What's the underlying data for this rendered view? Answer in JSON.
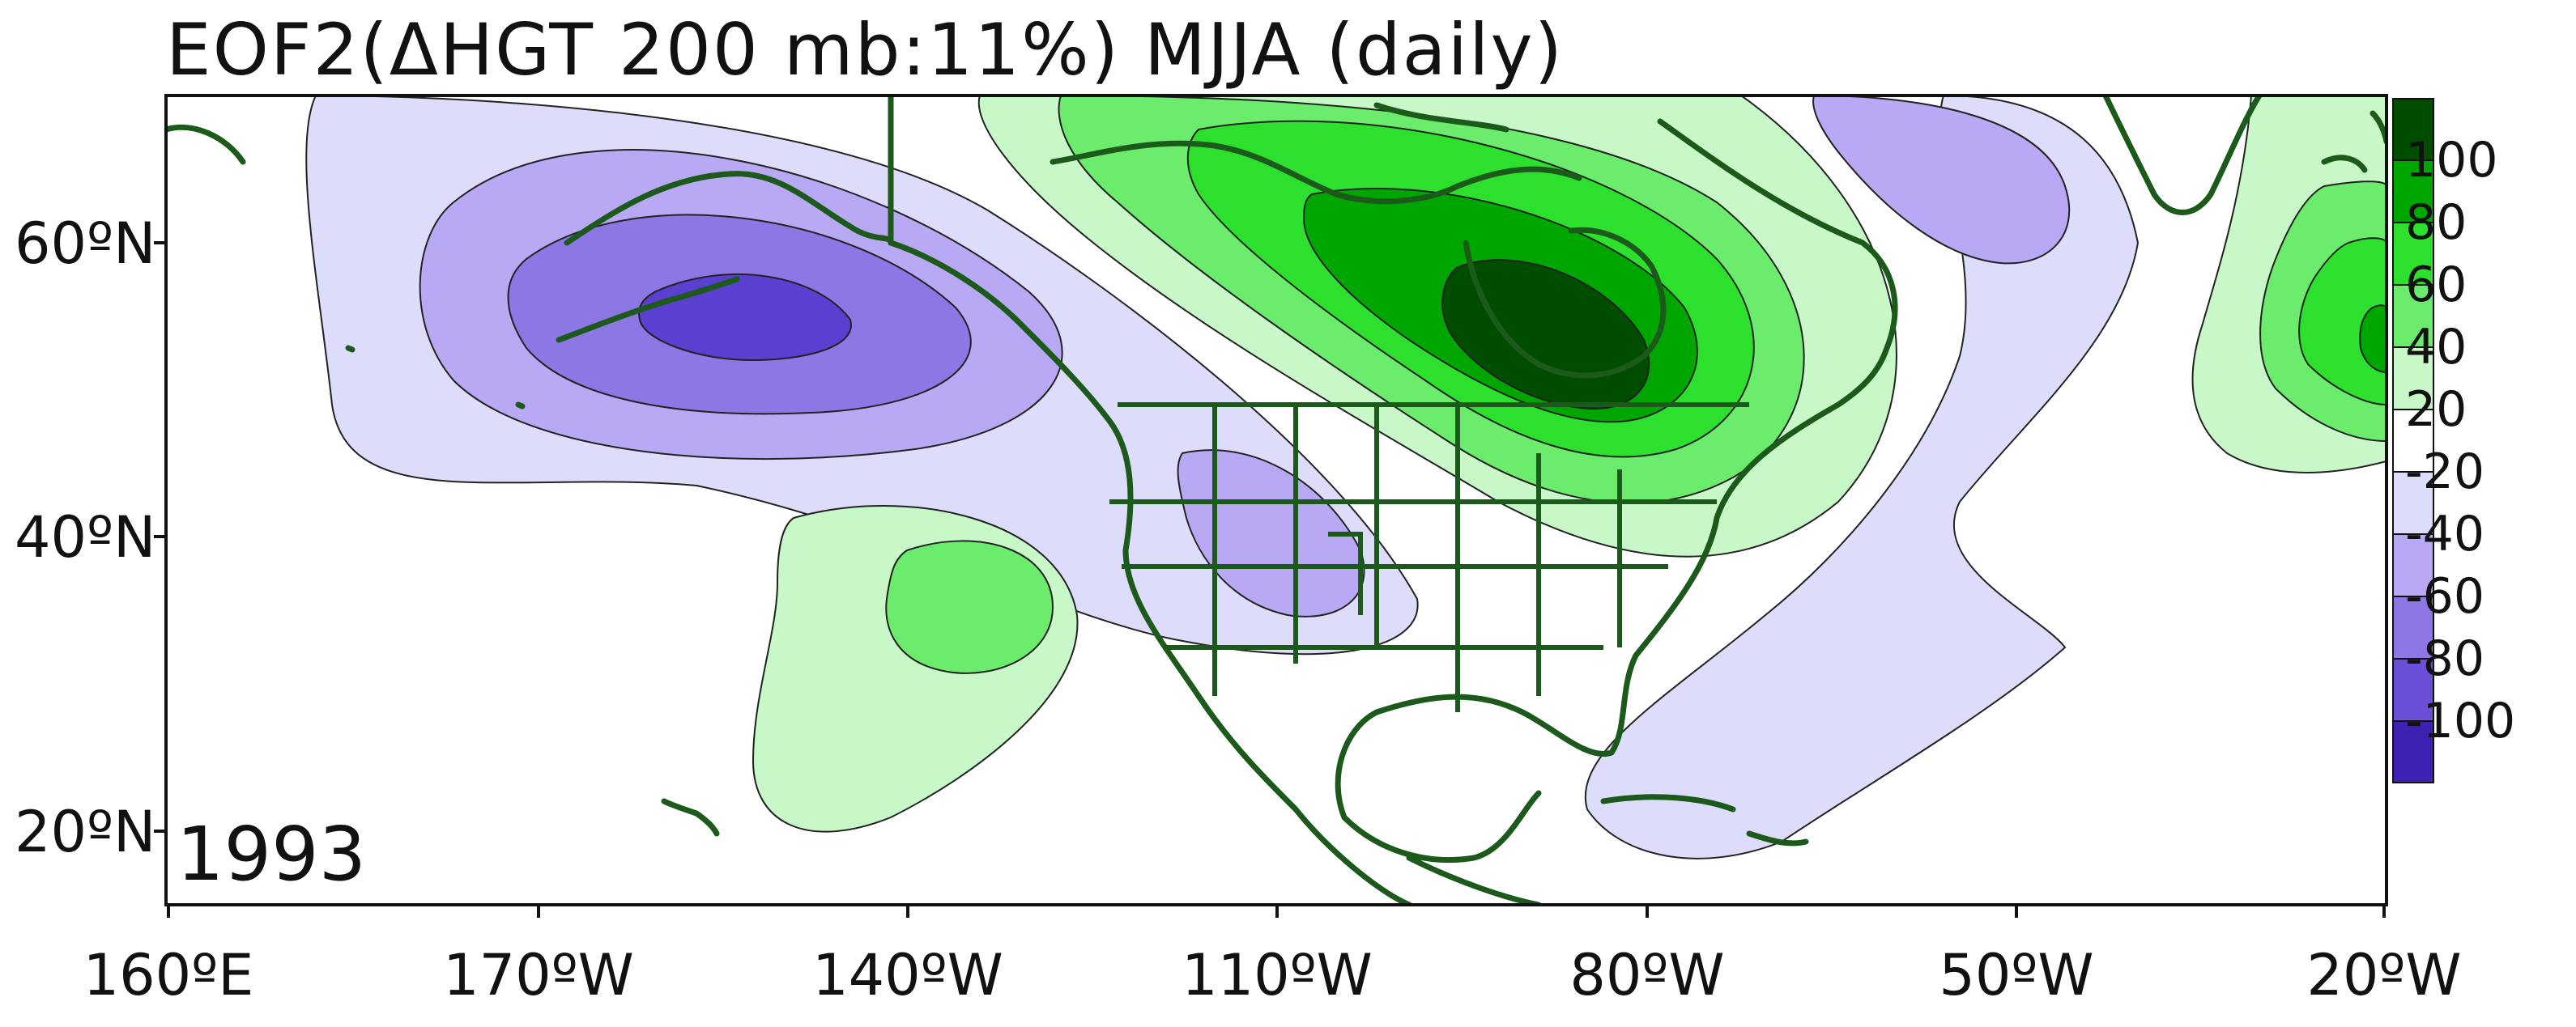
{
  "title": "EOF2(ΔHGT 200 mb:11%) MJJA (daily)",
  "year_label": "1993",
  "map": {
    "lat_ticks": [
      "60ºN",
      "40ºN",
      "20ºN"
    ],
    "lon_ticks": [
      "160ºE",
      "170ºW",
      "140ºW",
      "110ºW",
      "80ºW",
      "50ºW",
      "20ºW"
    ],
    "region": "North Pacific – North America – North Atlantic",
    "field": "200 mb height anomaly EOF2 pattern",
    "outline_color": "#1c5a1c"
  },
  "colorbar": {
    "labels": [
      "100",
      "80",
      "60",
      "40",
      "20",
      "-20",
      "-40",
      "-60",
      "-80",
      "-100"
    ],
    "colors": [
      "#004d00",
      "#00a600",
      "#2ee02e",
      "#6cec6c",
      "#c8f7c8",
      "#ffffff",
      "#dedcfb",
      "#b9a8f4",
      "#8c77e4",
      "#6a50d6",
      "#3e20b4"
    ]
  }
}
